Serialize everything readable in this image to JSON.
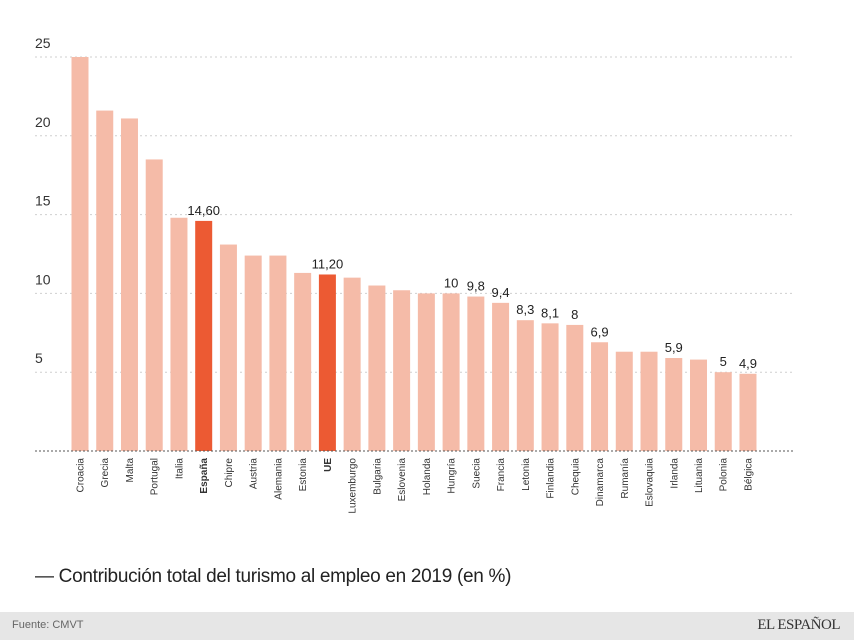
{
  "chart_data": {
    "type": "bar",
    "title": "— Contribución total del turismo al empleo en 2019 (en %)",
    "categories": [
      "Croacia",
      "Grecia",
      "Malta",
      "Portugal",
      "Italia",
      "España",
      "Chipre",
      "Austria",
      "Alemania",
      "Estonia",
      "UE",
      "Luxemburgo",
      "Bulgaria",
      "Eslovenia",
      "Holanda",
      "Hungría",
      "Suecia",
      "Francia",
      "Letonia",
      "Finlandia",
      "Chequia",
      "Dinamarca",
      "Rumanía",
      "Eslovaquia",
      "Irlanda",
      "Lituania",
      "Polonia",
      "Bélgica"
    ],
    "values": [
      25.0,
      21.6,
      21.1,
      18.5,
      14.8,
      14.6,
      13.1,
      12.4,
      12.4,
      11.3,
      11.2,
      11.0,
      10.5,
      10.2,
      10.0,
      10.0,
      9.8,
      9.4,
      8.3,
      8.1,
      8.0,
      6.9,
      6.3,
      6.3,
      5.9,
      5.8,
      5.0,
      4.9
    ],
    "data_labels": [
      "",
      "",
      "",
      "",
      "",
      "14,60",
      "",
      "",
      "",
      "",
      "11,20",
      "",
      "",
      "",
      "",
      "10",
      "9,8",
      "9,4",
      "8,3",
      "8,1",
      "8",
      "6,9",
      "",
      "",
      "5,9",
      "",
      "5",
      "4,9"
    ],
    "highlighted": [
      "España",
      "UE"
    ],
    "yticks": [
      "5",
      "10",
      "15",
      "20",
      "25"
    ],
    "ylim": [
      0,
      25
    ],
    "grid": true,
    "colors": {
      "bar": "#f5bba8",
      "highlight": "#ec5a33"
    }
  },
  "footer": {
    "source": "Fuente: CMVT",
    "logo": "EL ESPAÑOL"
  }
}
